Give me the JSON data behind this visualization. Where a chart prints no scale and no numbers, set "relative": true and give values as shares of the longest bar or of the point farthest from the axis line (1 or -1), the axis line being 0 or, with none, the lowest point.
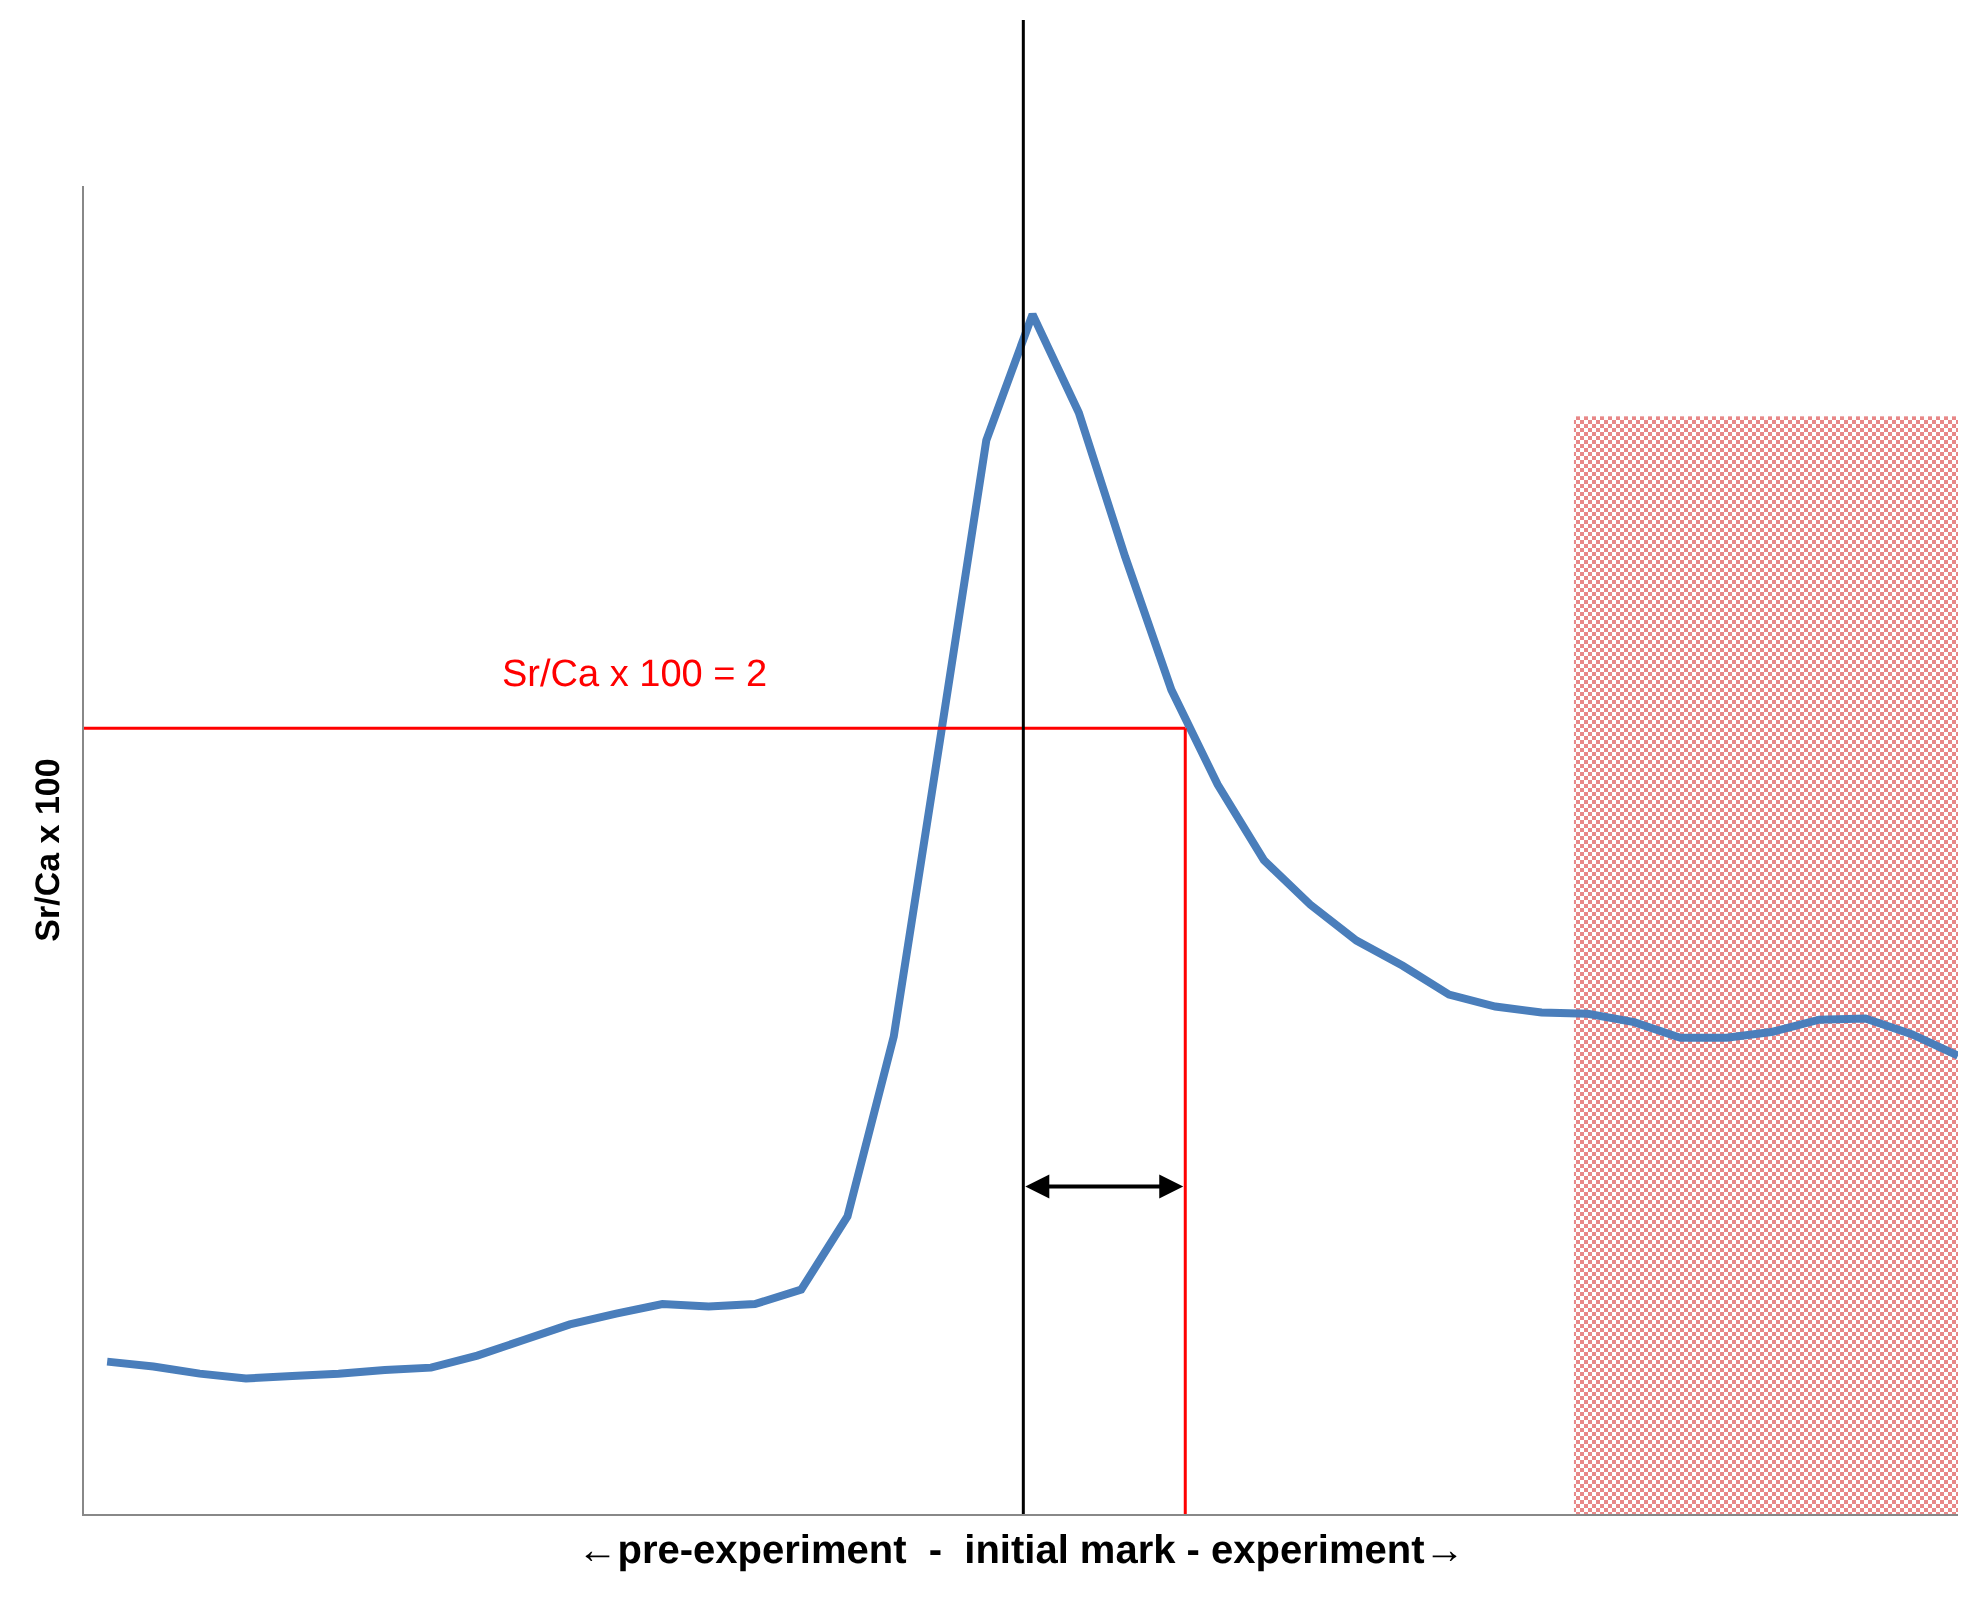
{
  "chart_data": {
    "type": "line",
    "relative": true,
    "xlabel": "←pre-experiment  -  initial mark - experiment→",
    "ylabel": "Sr/Ca x 100",
    "categories": [
      null,
      null,
      null,
      null,
      null,
      null,
      null,
      null,
      null,
      null,
      null,
      null,
      null,
      null,
      null,
      null,
      null,
      null,
      null,
      null,
      null,
      null,
      null,
      null,
      null,
      null,
      null,
      null,
      null,
      null,
      null,
      null,
      null,
      null,
      null,
      null,
      null,
      null,
      null,
      null,
      null
    ],
    "marker": "none",
    "line_style": "solid",
    "series": [
      {
        "color": "#4a7ebb",
        "values": [
          0.127,
          0.123,
          0.117,
          0.113,
          0.115,
          0.117,
          0.12,
          0.122,
          0.132,
          0.145,
          0.158,
          0.167,
          0.175,
          0.173,
          0.175,
          0.187,
          0.248,
          0.398,
          0.645,
          0.895,
          1,
          0.918,
          0.798,
          0.687,
          0.608,
          0.545,
          0.508,
          0.478,
          0.457,
          0.433,
          0.423,
          0.418,
          0.417,
          0.41,
          0.397,
          0.397,
          0.402,
          0.412,
          0.413,
          0.4,
          0.382
        ]
      }
    ],
    "annotations": [
      "Sr/Ca x 100 = 2"
    ],
    "ref_lines": [
      {
        "axis": "y",
        "value": 0.655,
        "color": "#ff0000"
      }
    ]
  }
}
